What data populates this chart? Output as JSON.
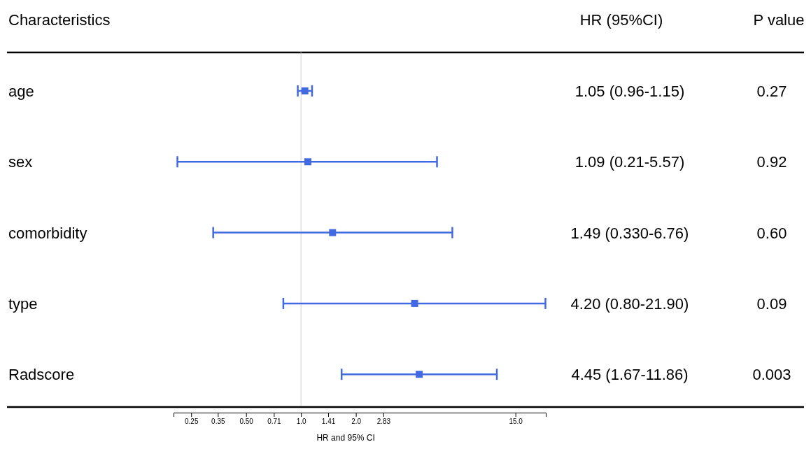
{
  "chart_data": {
    "type": "scatter",
    "orientation": "horizontal",
    "ylabel": "Characteristics",
    "xlabel": "HR and 95% CI",
    "categories": [
      "age",
      "sex",
      "comorbidity",
      "type",
      "Radscore"
    ],
    "values": [
      1.05,
      1.09,
      1.49,
      4.2,
      4.45
    ],
    "errors": [
      [
        0.96,
        1.15
      ],
      [
        0.21,
        5.57
      ],
      [
        0.33,
        6.76
      ],
      [
        0.8,
        21.9
      ],
      [
        1.67,
        11.86
      ]
    ],
    "value_labels": [
      "1.05 (0.96-1.15)",
      "1.09 (0.21-5.57)",
      "1.49 (0.330-6.76)",
      "4.20 (0.80-21.90)",
      "4.45 (1.67-11.86)"
    ],
    "color": "#4169e1",
    "marker": "square",
    "log": "x",
    "grid": false,
    "xlim": [
      0.2,
      22
    ],
    "xticks": [
      0.25,
      0.35,
      {
        "value": 0.5,
        "label": "0.50"
      },
      0.71,
      {
        "value": 1,
        "label": "1.0"
      },
      1.41,
      {
        "value": 2,
        "label": "2.0"
      },
      2.83,
      {
        "value": 15,
        "label": "15.0"
      }
    ],
    "ref_lines": [
      {
        "axis": "x",
        "value": 1,
        "color": "#d3d3d3"
      }
    ],
    "annotations": [
      "HR (95%CI)",
      "P value",
      "0.27",
      "0.92",
      "0.60",
      "0.09",
      "0.003"
    ]
  }
}
